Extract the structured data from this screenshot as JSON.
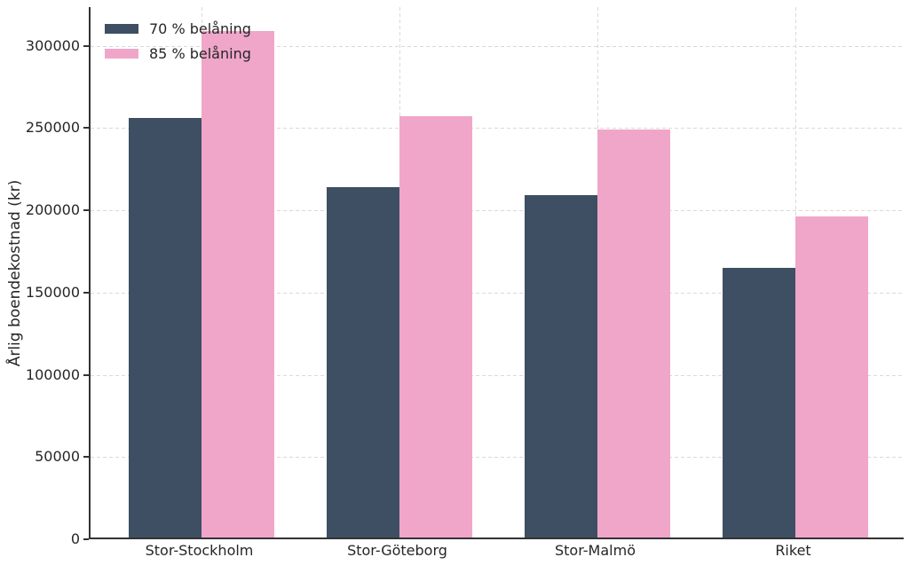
{
  "chart_data": {
    "type": "bar",
    "title": "",
    "categories": [
      "Stor-Stockholm",
      "Stor-Göteborg",
      "Stor-Malmö",
      "Riket"
    ],
    "series": [
      {
        "name": "70 % belåning",
        "color": "#3e4f63",
        "values": [
          255000,
          213000,
          208000,
          164000
        ]
      },
      {
        "name": "85 % belåning",
        "color": "#f0a6c9",
        "values": [
          308000,
          256000,
          248000,
          195000
        ]
      }
    ],
    "xlabel": "",
    "ylabel": "Årlig boendekostnad (kr)",
    "ylim": [
      0,
      323600
    ],
    "yticks": [
      0,
      50000,
      100000,
      150000,
      200000,
      250000,
      300000
    ],
    "grid": "dashed horizontal and vertical gridlines",
    "legend_position": "upper-left",
    "colors": {
      "series_70": "#3e4f63",
      "series_85": "#f0a6c9",
      "gridline": "#d9d9d9",
      "axis": "#333333",
      "text": "#262626",
      "background": "#ffffff"
    }
  }
}
